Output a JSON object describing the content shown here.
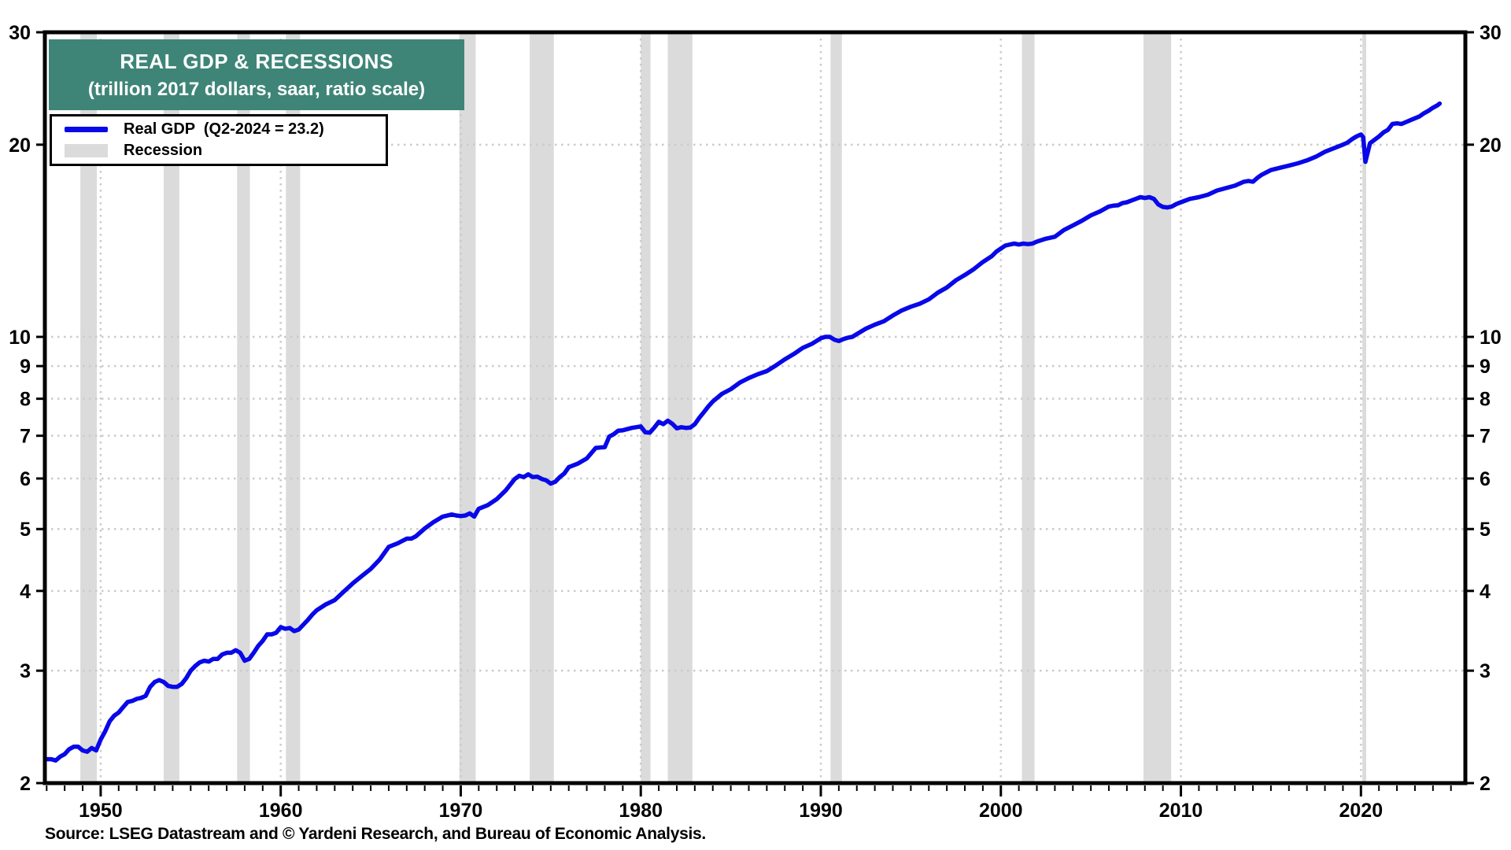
{
  "title": {
    "line1": "REAL GDP & RECESSIONS",
    "line2": "(trillion 2017 dollars, saar, ratio scale)"
  },
  "legend": {
    "items": [
      {
        "label": "Real GDP  (Q2-2024 = 23.2)",
        "swatch": "blue-line"
      },
      {
        "label": "Recession",
        "swatch": "gray-band"
      }
    ]
  },
  "source": "Source: LSEG Datastream and © Yardeni Research, and Bureau of Economic Analysis.",
  "colors": {
    "line": "#0808E8",
    "recession_band": "#DBDBDB",
    "title_bg": "#3E8578",
    "grid": "#CBCBCB",
    "axis": "#000000"
  },
  "chart_data": {
    "type": "line",
    "title": "REAL GDP & RECESSIONS",
    "subtitle": "(trillion 2017 dollars, saar, ratio scale)",
    "y_scale": "log",
    "ylim": [
      2,
      30
    ],
    "xlim": [
      1946.9,
      2025.8
    ],
    "y_ticks": [
      30,
      20,
      10,
      9,
      8,
      7,
      6,
      5,
      4,
      3,
      2
    ],
    "y_gridlines": [
      20,
      10,
      9,
      8,
      7,
      6,
      5,
      4,
      3
    ],
    "x_ticks": [
      1950,
      1960,
      1970,
      1980,
      1990,
      2000,
      2010,
      2020
    ],
    "x_minor_tick_step": 1,
    "grid": "dotted",
    "legend_position": "top-left",
    "ylabel": "",
    "xlabel": "",
    "recessions": [
      [
        1948.87,
        1949.79
      ],
      [
        1953.5,
        1954.37
      ],
      [
        1957.58,
        1958.29
      ],
      [
        1960.29,
        1961.08
      ],
      [
        1969.92,
        1970.83
      ],
      [
        1973.83,
        1975.17
      ],
      [
        1980.0,
        1980.54
      ],
      [
        1981.5,
        1982.87
      ],
      [
        1990.54,
        1991.17
      ],
      [
        2001.17,
        2001.87
      ],
      [
        2007.92,
        2009.46
      ],
      [
        2020.08,
        2020.29
      ]
    ],
    "series": [
      {
        "name": "Real GDP (Q2-2024 = 23.2)",
        "last_point": {
          "label": "Q2-2024",
          "value": 23.2
        },
        "points": [
          [
            1947.0,
            2.18
          ],
          [
            1947.25,
            2.18
          ],
          [
            1947.5,
            2.17
          ],
          [
            1947.75,
            2.2
          ],
          [
            1948.0,
            2.22
          ],
          [
            1948.25,
            2.26
          ],
          [
            1948.5,
            2.28
          ],
          [
            1948.75,
            2.28
          ],
          [
            1949.0,
            2.25
          ],
          [
            1949.25,
            2.24
          ],
          [
            1949.5,
            2.27
          ],
          [
            1949.75,
            2.25
          ],
          [
            1950.0,
            2.34
          ],
          [
            1950.25,
            2.41
          ],
          [
            1950.5,
            2.5
          ],
          [
            1950.75,
            2.55
          ],
          [
            1951.0,
            2.58
          ],
          [
            1951.25,
            2.63
          ],
          [
            1951.5,
            2.68
          ],
          [
            1951.75,
            2.69
          ],
          [
            1952.0,
            2.71
          ],
          [
            1952.25,
            2.72
          ],
          [
            1952.5,
            2.74
          ],
          [
            1952.75,
            2.83
          ],
          [
            1953.0,
            2.88
          ],
          [
            1953.25,
            2.9
          ],
          [
            1953.5,
            2.88
          ],
          [
            1953.75,
            2.84
          ],
          [
            1954.0,
            2.83
          ],
          [
            1954.25,
            2.83
          ],
          [
            1954.5,
            2.86
          ],
          [
            1954.75,
            2.92
          ],
          [
            1955.0,
            3.0
          ],
          [
            1955.25,
            3.05
          ],
          [
            1955.5,
            3.09
          ],
          [
            1955.75,
            3.11
          ],
          [
            1956.0,
            3.1
          ],
          [
            1956.25,
            3.13
          ],
          [
            1956.5,
            3.13
          ],
          [
            1956.75,
            3.18
          ],
          [
            1957.0,
            3.2
          ],
          [
            1957.25,
            3.2
          ],
          [
            1957.5,
            3.23
          ],
          [
            1957.75,
            3.2
          ],
          [
            1958.0,
            3.11
          ],
          [
            1958.25,
            3.13
          ],
          [
            1958.5,
            3.2
          ],
          [
            1958.75,
            3.28
          ],
          [
            1959.0,
            3.34
          ],
          [
            1959.25,
            3.42
          ],
          [
            1959.5,
            3.42
          ],
          [
            1959.75,
            3.44
          ],
          [
            1960.0,
            3.51
          ],
          [
            1960.25,
            3.49
          ],
          [
            1960.5,
            3.5
          ],
          [
            1960.75,
            3.46
          ],
          [
            1961.0,
            3.48
          ],
          [
            1961.25,
            3.54
          ],
          [
            1961.5,
            3.6
          ],
          [
            1961.75,
            3.67
          ],
          [
            1962.0,
            3.73
          ],
          [
            1962.5,
            3.81
          ],
          [
            1963.0,
            3.87
          ],
          [
            1963.5,
            3.99
          ],
          [
            1964.0,
            4.11
          ],
          [
            1964.5,
            4.22
          ],
          [
            1965.0,
            4.33
          ],
          [
            1965.5,
            4.48
          ],
          [
            1966.0,
            4.69
          ],
          [
            1966.5,
            4.75
          ],
          [
            1967.0,
            4.83
          ],
          [
            1967.25,
            4.83
          ],
          [
            1967.5,
            4.87
          ],
          [
            1968.0,
            5.01
          ],
          [
            1968.5,
            5.13
          ],
          [
            1969.0,
            5.23
          ],
          [
            1969.5,
            5.27
          ],
          [
            1969.75,
            5.25
          ],
          [
            1970.0,
            5.24
          ],
          [
            1970.25,
            5.25
          ],
          [
            1970.5,
            5.29
          ],
          [
            1970.75,
            5.23
          ],
          [
            1971.0,
            5.38
          ],
          [
            1971.5,
            5.45
          ],
          [
            1972.0,
            5.57
          ],
          [
            1972.5,
            5.75
          ],
          [
            1973.0,
            5.99
          ],
          [
            1973.25,
            6.06
          ],
          [
            1973.5,
            6.03
          ],
          [
            1973.75,
            6.09
          ],
          [
            1974.0,
            6.03
          ],
          [
            1974.25,
            6.04
          ],
          [
            1974.5,
            5.99
          ],
          [
            1974.75,
            5.96
          ],
          [
            1975.0,
            5.89
          ],
          [
            1975.25,
            5.93
          ],
          [
            1975.5,
            6.03
          ],
          [
            1975.75,
            6.11
          ],
          [
            1976.0,
            6.25
          ],
          [
            1976.5,
            6.33
          ],
          [
            1977.0,
            6.45
          ],
          [
            1977.5,
            6.7
          ],
          [
            1978.0,
            6.72
          ],
          [
            1978.25,
            6.98
          ],
          [
            1978.5,
            7.04
          ],
          [
            1978.75,
            7.13
          ],
          [
            1979.0,
            7.14
          ],
          [
            1979.5,
            7.2
          ],
          [
            1980.0,
            7.24
          ],
          [
            1980.25,
            7.09
          ],
          [
            1980.5,
            7.08
          ],
          [
            1980.75,
            7.21
          ],
          [
            1981.0,
            7.36
          ],
          [
            1981.25,
            7.3
          ],
          [
            1981.5,
            7.39
          ],
          [
            1981.75,
            7.31
          ],
          [
            1982.0,
            7.19
          ],
          [
            1982.25,
            7.22
          ],
          [
            1982.5,
            7.2
          ],
          [
            1982.75,
            7.21
          ],
          [
            1983.0,
            7.3
          ],
          [
            1983.25,
            7.47
          ],
          [
            1983.5,
            7.62
          ],
          [
            1983.75,
            7.78
          ],
          [
            1984.0,
            7.92
          ],
          [
            1984.5,
            8.14
          ],
          [
            1985.0,
            8.28
          ],
          [
            1985.5,
            8.48
          ],
          [
            1986.0,
            8.62
          ],
          [
            1986.5,
            8.74
          ],
          [
            1987.0,
            8.84
          ],
          [
            1987.5,
            9.02
          ],
          [
            1988.0,
            9.22
          ],
          [
            1988.5,
            9.4
          ],
          [
            1989.0,
            9.61
          ],
          [
            1989.5,
            9.75
          ],
          [
            1990.0,
            9.95
          ],
          [
            1990.25,
            10.0
          ],
          [
            1990.5,
            10.0
          ],
          [
            1990.75,
            9.9
          ],
          [
            1991.0,
            9.85
          ],
          [
            1991.25,
            9.92
          ],
          [
            1991.5,
            9.97
          ],
          [
            1991.75,
            10.0
          ],
          [
            1992.0,
            10.1
          ],
          [
            1992.5,
            10.3
          ],
          [
            1993.0,
            10.45
          ],
          [
            1993.5,
            10.58
          ],
          [
            1994.0,
            10.8
          ],
          [
            1994.5,
            11.0
          ],
          [
            1995.0,
            11.15
          ],
          [
            1995.5,
            11.27
          ],
          [
            1996.0,
            11.45
          ],
          [
            1996.5,
            11.73
          ],
          [
            1997.0,
            11.95
          ],
          [
            1997.5,
            12.26
          ],
          [
            1998.0,
            12.5
          ],
          [
            1998.5,
            12.77
          ],
          [
            1999.0,
            13.1
          ],
          [
            1999.5,
            13.38
          ],
          [
            1999.75,
            13.6
          ],
          [
            2000.0,
            13.75
          ],
          [
            2000.25,
            13.9
          ],
          [
            2000.5,
            13.95
          ],
          [
            2000.75,
            14.0
          ],
          [
            2001.0,
            13.95
          ],
          [
            2001.25,
            14.0
          ],
          [
            2001.5,
            13.97
          ],
          [
            2001.75,
            14.0
          ],
          [
            2002.0,
            14.1
          ],
          [
            2002.5,
            14.25
          ],
          [
            2003.0,
            14.35
          ],
          [
            2003.5,
            14.7
          ],
          [
            2004.0,
            14.95
          ],
          [
            2004.5,
            15.2
          ],
          [
            2005.0,
            15.5
          ],
          [
            2005.5,
            15.72
          ],
          [
            2006.0,
            16.0
          ],
          [
            2006.25,
            16.05
          ],
          [
            2006.5,
            16.07
          ],
          [
            2006.75,
            16.2
          ],
          [
            2007.0,
            16.25
          ],
          [
            2007.25,
            16.35
          ],
          [
            2007.5,
            16.45
          ],
          [
            2007.75,
            16.55
          ],
          [
            2008.0,
            16.5
          ],
          [
            2008.25,
            16.55
          ],
          [
            2008.5,
            16.45
          ],
          [
            2008.75,
            16.12
          ],
          [
            2009.0,
            15.98
          ],
          [
            2009.25,
            15.95
          ],
          [
            2009.5,
            16.0
          ],
          [
            2009.75,
            16.15
          ],
          [
            2010.0,
            16.25
          ],
          [
            2010.5,
            16.45
          ],
          [
            2011.0,
            16.55
          ],
          [
            2011.5,
            16.7
          ],
          [
            2012.0,
            16.95
          ],
          [
            2012.5,
            17.1
          ],
          [
            2013.0,
            17.25
          ],
          [
            2013.5,
            17.5
          ],
          [
            2013.75,
            17.55
          ],
          [
            2014.0,
            17.5
          ],
          [
            2014.25,
            17.75
          ],
          [
            2014.5,
            17.95
          ],
          [
            2014.75,
            18.1
          ],
          [
            2015.0,
            18.25
          ],
          [
            2015.5,
            18.4
          ],
          [
            2016.0,
            18.55
          ],
          [
            2016.5,
            18.7
          ],
          [
            2017.0,
            18.9
          ],
          [
            2017.5,
            19.15
          ],
          [
            2018.0,
            19.5
          ],
          [
            2018.5,
            19.75
          ],
          [
            2019.0,
            20.0
          ],
          [
            2019.25,
            20.15
          ],
          [
            2019.5,
            20.4
          ],
          [
            2019.75,
            20.6
          ],
          [
            2020.0,
            20.75
          ],
          [
            2020.125,
            20.55
          ],
          [
            2020.25,
            18.8
          ],
          [
            2020.5,
            20.1
          ],
          [
            2020.75,
            20.35
          ],
          [
            2021.0,
            20.6
          ],
          [
            2021.25,
            20.9
          ],
          [
            2021.5,
            21.1
          ],
          [
            2021.75,
            21.55
          ],
          [
            2022.0,
            21.6
          ],
          [
            2022.25,
            21.55
          ],
          [
            2022.5,
            21.7
          ],
          [
            2022.75,
            21.85
          ],
          [
            2023.0,
            22.0
          ],
          [
            2023.25,
            22.15
          ],
          [
            2023.5,
            22.4
          ],
          [
            2023.75,
            22.6
          ],
          [
            2024.0,
            22.85
          ],
          [
            2024.25,
            23.05
          ],
          [
            2024.375,
            23.2
          ]
        ]
      }
    ]
  }
}
